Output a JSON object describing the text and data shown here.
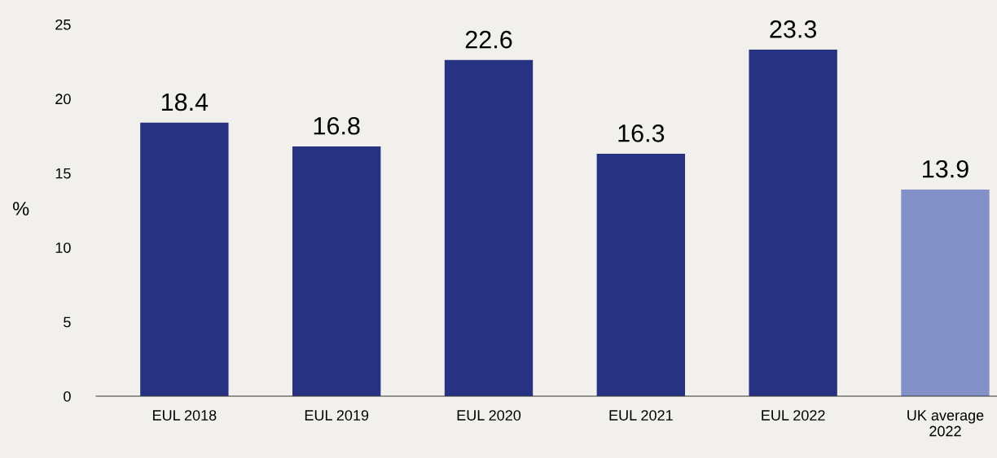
{
  "chart_data": {
    "type": "bar",
    "ylabel": "%",
    "categories": [
      "EUL 2018",
      "EUL 2019",
      "EUL 2020",
      "EUL 2021",
      "EUL 2022",
      "UK average\n2022"
    ],
    "values": [
      18.4,
      16.8,
      22.6,
      16.3,
      23.3,
      13.9
    ],
    "colors": [
      "#283282",
      "#283282",
      "#283282",
      "#283282",
      "#283282",
      "#8490c8"
    ],
    "ylim": [
      0,
      25
    ],
    "yticks": [
      0,
      5,
      10,
      15,
      20,
      25
    ],
    "data_labels": true,
    "grid": false,
    "legend": false
  }
}
